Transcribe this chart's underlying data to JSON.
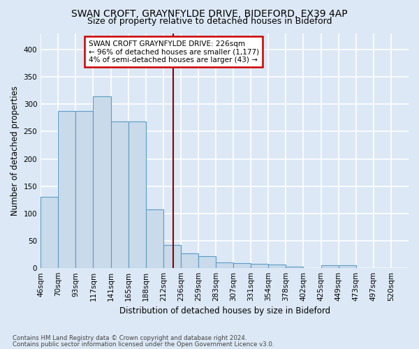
{
  "title": "SWAN CROFT, GRAYNFYLDE DRIVE, BIDEFORD, EX39 4AP",
  "subtitle": "Size of property relative to detached houses in Bideford",
  "xlabel": "Distribution of detached houses by size in Bideford",
  "ylabel": "Number of detached properties",
  "footnote1": "Contains HM Land Registry data © Crown copyright and database right 2024.",
  "footnote2": "Contains public sector information licensed under the Open Government Licence v3.0.",
  "bar_labels": [
    "46sqm",
    "70sqm",
    "93sqm",
    "117sqm",
    "141sqm",
    "165sqm",
    "188sqm",
    "212sqm",
    "236sqm",
    "259sqm",
    "283sqm",
    "307sqm",
    "331sqm",
    "354sqm",
    "378sqm",
    "402sqm",
    "425sqm",
    "449sqm",
    "473sqm",
    "497sqm",
    "520sqm"
  ],
  "bar_values": [
    130,
    288,
    288,
    315,
    268,
    268,
    107,
    42,
    27,
    22,
    11,
    9,
    8,
    7,
    3,
    0,
    5,
    5,
    0,
    0,
    0
  ],
  "bar_color": "#c9daea",
  "bar_edge_color": "#5a9dc8",
  "vline_color": "#8b0000",
  "annotation_title": "SWAN CROFT GRAYNFYLDE DRIVE: 226sqm",
  "annotation_line2": "← 96% of detached houses are smaller (1,177)",
  "annotation_line3": "4% of semi-detached houses are larger (43) →",
  "annotation_box_color": "#ffffff",
  "annotation_border_color": "#cc0000",
  "ylim": [
    0,
    430
  ],
  "yticks": [
    0,
    50,
    100,
    150,
    200,
    250,
    300,
    350,
    400
  ],
  "bg_color": "#dce8f5",
  "plot_bg_color": "#dce8f5",
  "grid_color": "#ffffff",
  "title_fontsize": 10,
  "subtitle_fontsize": 9,
  "label_fontsize": 8.5,
  "tick_fontsize": 7.5,
  "annot_fontsize": 7.5
}
